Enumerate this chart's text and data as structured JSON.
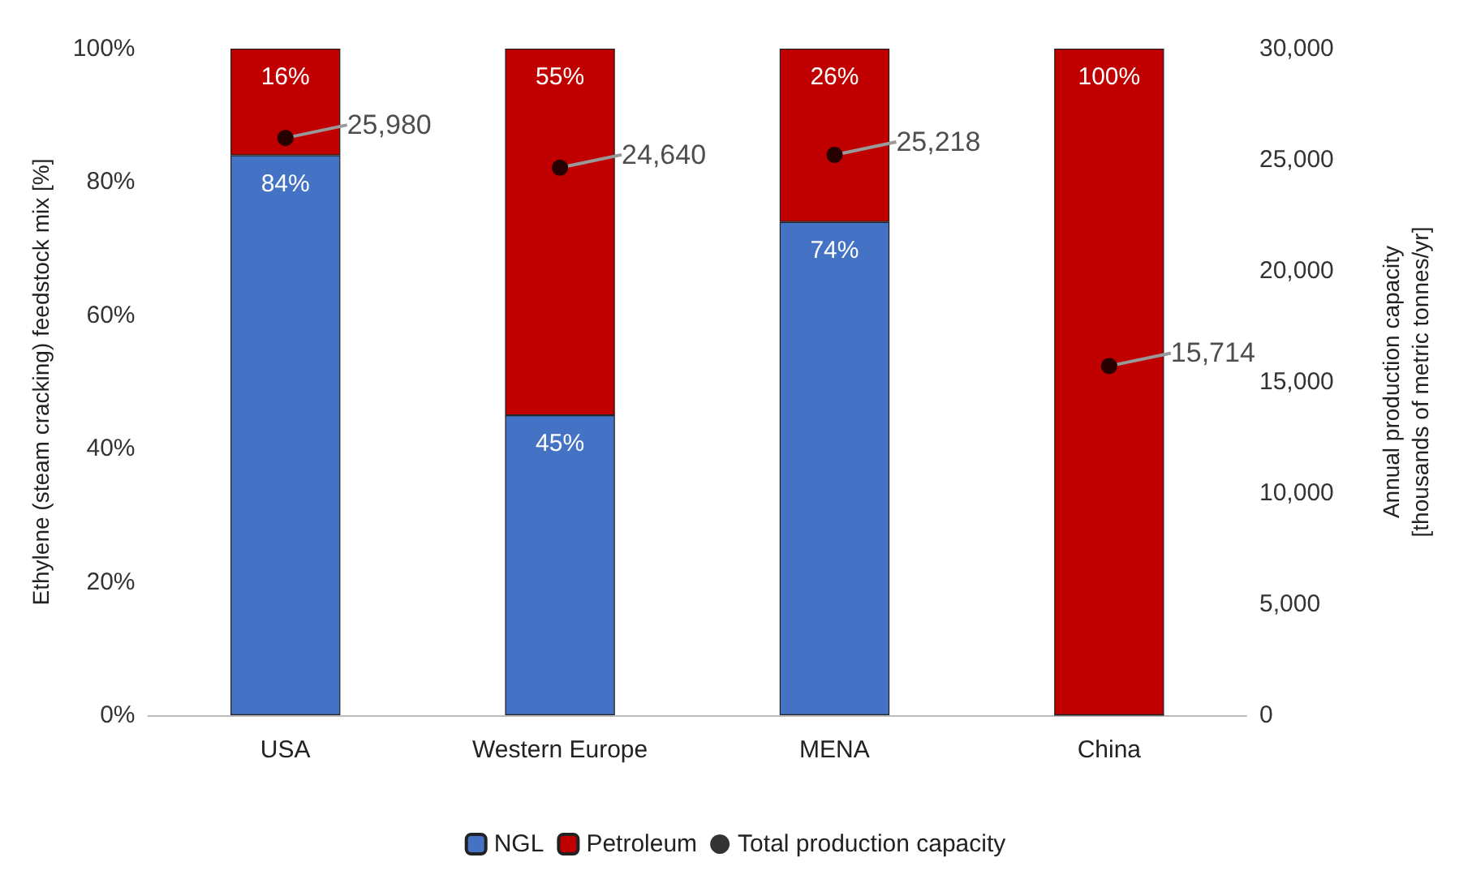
{
  "chart_data": {
    "type": "bar",
    "stacked": true,
    "categories": [
      "USA",
      "Western Europe",
      "MENA",
      "China"
    ],
    "ylabel": "Ethylene (steam cracking) feedstock mix [%]",
    "y2label": "Annual production capacity\n[thousands of metric tonnes/yr]",
    "ylim": [
      0,
      100
    ],
    "yticks": [
      {
        "value": 0,
        "label": "0%"
      },
      {
        "value": 20,
        "label": "20%"
      },
      {
        "value": 40,
        "label": "40%"
      },
      {
        "value": 60,
        "label": "60%"
      },
      {
        "value": 80,
        "label": "80%"
      },
      {
        "value": 100,
        "label": "100%"
      }
    ],
    "y2lim": [
      0,
      30000
    ],
    "y2ticks": [
      {
        "value": 0,
        "label": "0"
      },
      {
        "value": 5000,
        "label": "5,000"
      },
      {
        "value": 10000,
        "label": "10,000"
      },
      {
        "value": 15000,
        "label": "15,000"
      },
      {
        "value": 20000,
        "label": "20,000"
      },
      {
        "value": 25000,
        "label": "25,000"
      },
      {
        "value": 30000,
        "label": "30,000"
      }
    ],
    "series": [
      {
        "name": "NGL",
        "color": "#4472c4",
        "values": [
          84,
          45,
          74,
          0
        ],
        "value_labels": [
          "84%",
          "45%",
          "74%",
          null
        ]
      },
      {
        "name": "Petroleum",
        "color": "#c00000",
        "values": [
          16,
          55,
          26,
          100
        ],
        "value_labels": [
          "16%",
          "55%",
          "26%",
          "100%"
        ]
      },
      {
        "name": "Total production capacity",
        "type": "scatter",
        "axis": "y2",
        "color": "#000000",
        "marker": "circle",
        "values": [
          25980,
          24640,
          25218,
          15714
        ],
        "value_labels": [
          "25,980",
          "24,640",
          "25,218",
          "15,714"
        ]
      }
    ],
    "legend": "bottom",
    "grid": false
  }
}
